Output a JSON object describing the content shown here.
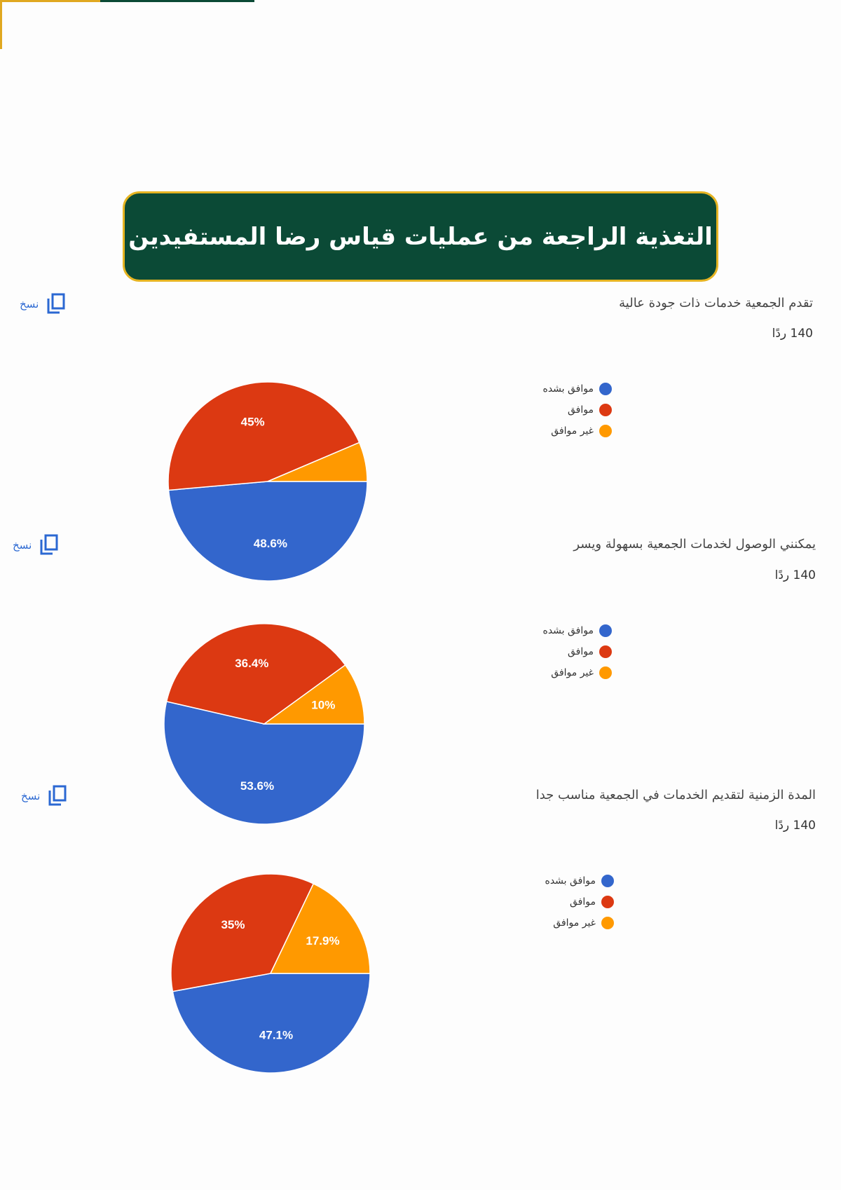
{
  "page": {
    "banner_title": "التغذية الراجعة من عمليات قياس رضا المستفيدين",
    "copy_label": "نسخ",
    "colors": {
      "banner_bg": "#0b4a36",
      "banner_border": "#e6b422",
      "link": "#2b68d2"
    }
  },
  "legend_labels": [
    "موافق بشده",
    "موافق",
    "غير موافق"
  ],
  "chart_data": [
    {
      "type": "pie",
      "title": "تقدم الجمعية خدمات ذات جودة عالية",
      "response_count": "140 ردًا",
      "labels": [
        "موافق بشده",
        "موافق",
        "غير موافق"
      ],
      "values": [
        48.6,
        45,
        6.4
      ],
      "value_labels": [
        "48.6%",
        "45%",
        ""
      ],
      "colors": [
        "#3366cc",
        "#dc3912",
        "#ff9900"
      ]
    },
    {
      "type": "pie",
      "title": "يمكنني الوصول لخدمات الجمعية بسهولة ويسر",
      "response_count": "140 ردًا",
      "labels": [
        "موافق بشده",
        "موافق",
        "غير موافق"
      ],
      "values": [
        53.6,
        36.4,
        10
      ],
      "value_labels": [
        "53.6%",
        "36.4%",
        "10%"
      ],
      "colors": [
        "#3366cc",
        "#dc3912",
        "#ff9900"
      ]
    },
    {
      "type": "pie",
      "title": "المدة الزمنية لتقديم الخدمات في الجمعية مناسب جدا",
      "response_count": "140 ردًا",
      "labels": [
        "موافق بشده",
        "موافق",
        "غير موافق"
      ],
      "values": [
        47.1,
        35,
        17.9
      ],
      "value_labels": [
        "47.1%",
        "35%",
        "17.9%"
      ],
      "colors": [
        "#3366cc",
        "#dc3912",
        "#ff9900"
      ]
    }
  ]
}
